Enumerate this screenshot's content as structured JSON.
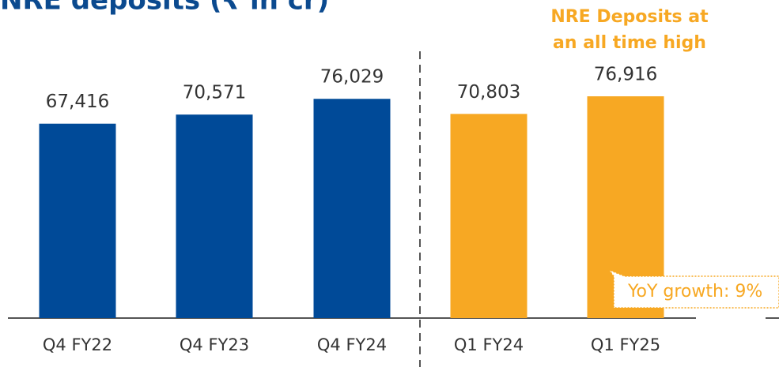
{
  "chart_data": {
    "type": "bar",
    "title": "NRE deposits (₹ in cr)",
    "categories": [
      "Q4 FY22",
      "Q4 FY23",
      "Q4 FY24",
      "Q1 FY24",
      "Q1 FY25"
    ],
    "values": [
      67416,
      70571,
      76029,
      70803,
      76916
    ],
    "value_labels": [
      "67,416",
      "70,571",
      "76,029",
      "70,803",
      "76,916"
    ],
    "colors": [
      "#004a98",
      "#004a98",
      "#004a98",
      "#f7a823",
      "#f7a823"
    ],
    "annotations": [
      "NRE Deposits at",
      "an all time high",
      "YoY growth: 9%"
    ]
  }
}
